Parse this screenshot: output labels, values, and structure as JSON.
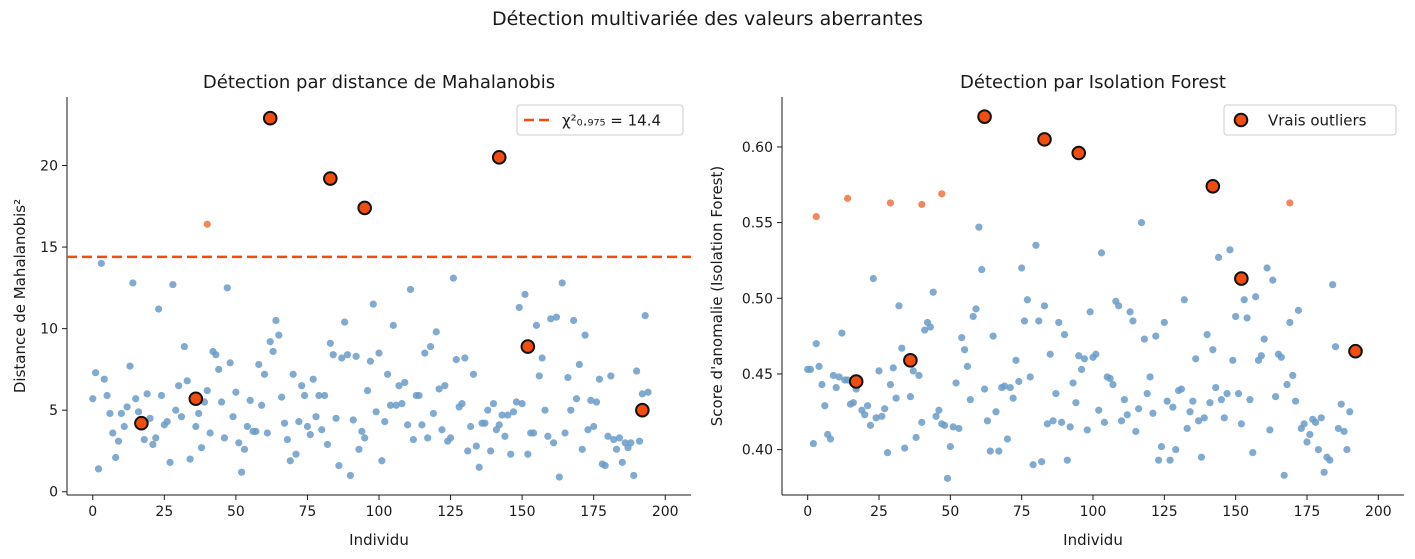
{
  "suptitle": "Détection multivariée des valeurs aberrantes",
  "colors": {
    "inlier": "#6a9bc8",
    "flagged": "#f07b4b",
    "true_outlier": "#f24d0f",
    "threshold": "#f24d0f",
    "axis": "#1a1a1a"
  },
  "chart_data": [
    {
      "type": "scatter",
      "title": "Détection par distance de Mahalanobis",
      "xlabel": "Individu",
      "ylabel": "Distance de Mahalanobis²",
      "xlim": [
        -9,
        209
      ],
      "ylim": [
        -0.2,
        24.2
      ],
      "xticks": [
        0,
        25,
        50,
        75,
        100,
        125,
        150,
        175,
        200
      ],
      "yticks": [
        0,
        5,
        10,
        15,
        20
      ],
      "grid": false,
      "legend_position": "top-right",
      "threshold": {
        "value": 14.4,
        "label": "χ²₀.₉₇₅ = 14.4"
      },
      "inliers_y": [
        5.7,
        7.3,
        1.4,
        14.0,
        6.9,
        5.9,
        4.8,
        3.6,
        2.1,
        3.1,
        4.8,
        4.0,
        5.2,
        7.7,
        12.8,
        5.7,
        4.9,
        4.2,
        3.2,
        6.0,
        4.5,
        2.9,
        3.3,
        11.2,
        5.9,
        4.1,
        4.3,
        1.8,
        12.7,
        5.0,
        6.5,
        4.6,
        8.9,
        6.8,
        2.0,
        5.7,
        4.0,
        4.8,
        2.7,
        5.5,
        6.2,
        3.6,
        8.6,
        8.4,
        7.5,
        5.5,
        3.3,
        12.5,
        7.9,
        4.6,
        6.1,
        3.0,
        1.2,
        2.6,
        4.0,
        5.6,
        3.7,
        3.7,
        7.8,
        5.3,
        7.2,
        3.6,
        9.2,
        8.6,
        10.5,
        9.6,
        5.8,
        4.2,
        3.2,
        1.9,
        7.2,
        2.3,
        4.3,
        6.5,
        5.9,
        4.0,
        3.5,
        6.9,
        4.6,
        5.9,
        3.8,
        5.9,
        2.9,
        9.1,
        8.4,
        4.5,
        1.6,
        8.2,
        10.4,
        8.4,
        1.0,
        4.4,
        8.3,
        2.6,
        3.7,
        3.3,
        6.2,
        8.0,
        11.5,
        4.9,
        8.5,
        1.9,
        4.3,
        7.2,
        5.3,
        10.2,
        5.3,
        6.5,
        5.4,
        6.7,
        4.1,
        12.4,
        3.2,
        5.9,
        5.9,
        4.1,
        8.5,
        3.3,
        8.9,
        4.8,
        9.8,
        6.3,
        3.8,
        6.5,
        3.1,
        3.3,
        13.1,
        8.1,
        5.2,
        5.4,
        8.2,
        2.5,
        4.0,
        7.2,
        2.8,
        1.5,
        4.2,
        4.2,
        5.0,
        2.5,
        5.4,
        3.8,
        4.1,
        4.7,
        3.4,
        4.7,
        2.3,
        4.9,
        5.5,
        11.3,
        5.4,
        12.1,
        2.3,
        3.6,
        3.6,
        10.2,
        7.1,
        8.2,
        5.0,
        3.4,
        10.6,
        3.0,
        10.7,
        0.9,
        12.8,
        3.6,
        7.0,
        5.0,
        10.5,
        5.7,
        7.8,
        2.6,
        9.6,
        3.8,
        5.6,
        4.0,
        5.5,
        6.9,
        1.7,
        1.6,
        3.4,
        7.1,
        3.2,
        2.6,
        3.3,
        1.8,
        3.0,
        2.7,
        3.0,
        1.0,
        7.4,
        3.1,
        6.0,
        10.8,
        6.1
      ],
      "flagged": [
        {
          "x": 40,
          "y": 16.4
        }
      ],
      "true_outliers": [
        {
          "x": 17,
          "y": 4.2
        },
        {
          "x": 36,
          "y": 5.7
        },
        {
          "x": 62,
          "y": 22.9
        },
        {
          "x": 83,
          "y": 19.2
        },
        {
          "x": 95,
          "y": 17.4
        },
        {
          "x": 142,
          "y": 20.5
        },
        {
          "x": 152,
          "y": 8.9
        },
        {
          "x": 192,
          "y": 5.0
        }
      ]
    },
    {
      "type": "scatter",
      "title": "Détection par Isolation Forest",
      "xlabel": "Individu",
      "ylabel": "Score d'anomalie (Isolation Forest)",
      "xlim": [
        -9,
        209
      ],
      "ylim": [
        0.37,
        0.633
      ],
      "xticks": [
        0,
        25,
        50,
        75,
        100,
        125,
        150,
        175,
        200
      ],
      "yticks": [
        0.4,
        0.45,
        0.5,
        0.55,
        0.6
      ],
      "grid": false,
      "legend_position": "top-right",
      "legend_label": "Vrais outliers",
      "inliers_y": [
        0.453,
        0.453,
        0.404,
        0.47,
        0.455,
        0.443,
        0.429,
        0.41,
        0.407,
        0.449,
        0.441,
        0.448,
        0.477,
        0.446,
        0.446,
        0.43,
        0.431,
        0.44,
        0.446,
        0.426,
        0.423,
        0.429,
        0.416,
        0.513,
        0.421,
        0.452,
        0.422,
        0.427,
        0.398,
        0.443,
        0.454,
        0.434,
        0.495,
        0.467,
        0.401,
        0.459,
        0.435,
        0.452,
        0.408,
        0.449,
        0.418,
        0.479,
        0.484,
        0.481,
        0.504,
        0.422,
        0.426,
        0.417,
        0.416,
        0.381,
        0.402,
        0.415,
        0.444,
        0.414,
        0.474,
        0.466,
        0.455,
        0.433,
        0.488,
        0.493,
        0.547,
        0.519,
        0.44,
        0.419,
        0.399,
        0.475,
        0.425,
        0.399,
        0.441,
        0.442,
        0.407,
        0.441,
        0.434,
        0.459,
        0.445,
        0.52,
        0.485,
        0.499,
        0.448,
        0.39,
        0.535,
        0.485,
        0.392,
        0.495,
        0.417,
        0.463,
        0.419,
        0.437,
        0.484,
        0.418,
        0.476,
        0.393,
        0.415,
        0.444,
        0.431,
        0.462,
        0.453,
        0.46,
        0.413,
        0.491,
        0.461,
        0.463,
        0.426,
        0.53,
        0.418,
        0.448,
        0.447,
        0.443,
        0.498,
        0.495,
        0.419,
        0.433,
        0.423,
        0.491,
        0.485,
        0.412,
        0.427,
        0.55,
        0.473,
        0.437,
        0.448,
        0.424,
        0.475,
        0.393,
        0.402,
        0.484,
        0.432,
        0.393,
        0.428,
        0.4,
        0.439,
        0.44,
        0.499,
        0.414,
        0.425,
        0.432,
        0.46,
        0.419,
        0.395,
        0.421,
        0.476,
        0.431,
        0.466,
        0.441,
        0.527,
        0.433,
        0.421,
        0.437,
        0.532,
        0.459,
        0.488,
        0.437,
        0.417,
        0.499,
        0.487,
        0.433,
        0.398,
        0.501,
        0.459,
        0.462,
        0.473,
        0.52,
        0.413,
        0.512,
        0.435,
        0.463,
        0.461,
        0.383,
        0.443,
        0.484,
        0.449,
        0.432,
        0.492,
        0.414,
        0.417,
        0.405,
        0.41,
        0.42,
        0.418,
        0.4,
        0.421,
        0.385,
        0.395,
        0.393,
        0.509,
        0.468,
        0.414,
        0.43,
        0.412,
        0.4,
        0.425
      ],
      "flagged": [
        {
          "x": 3,
          "y": 0.554
        },
        {
          "x": 14,
          "y": 0.566
        },
        {
          "x": 29,
          "y": 0.563
        },
        {
          "x": 40,
          "y": 0.562
        },
        {
          "x": 47,
          "y": 0.569
        },
        {
          "x": 169,
          "y": 0.563
        }
      ],
      "true_outliers": [
        {
          "x": 17,
          "y": 0.445
        },
        {
          "x": 36,
          "y": 0.459
        },
        {
          "x": 62,
          "y": 0.62
        },
        {
          "x": 83,
          "y": 0.605
        },
        {
          "x": 95,
          "y": 0.596
        },
        {
          "x": 142,
          "y": 0.574
        },
        {
          "x": 152,
          "y": 0.513
        },
        {
          "x": 192,
          "y": 0.465
        }
      ]
    }
  ]
}
